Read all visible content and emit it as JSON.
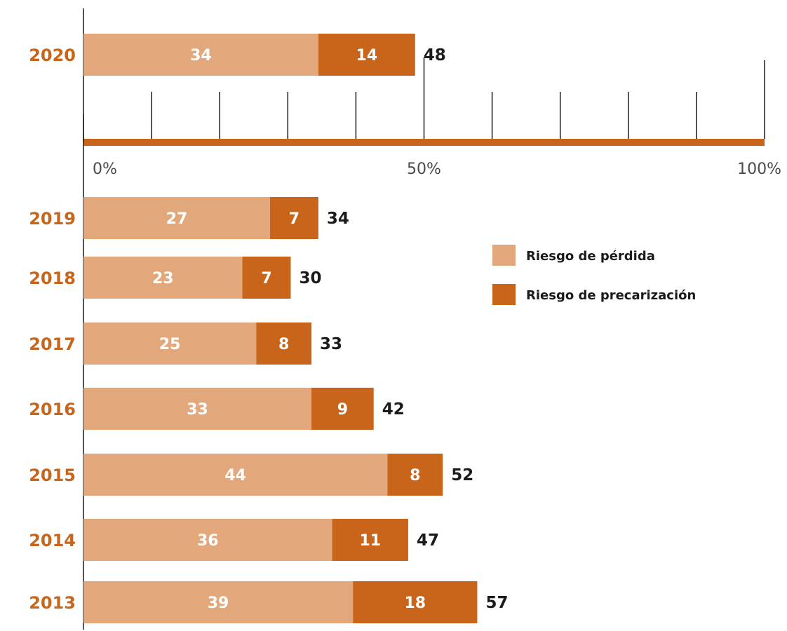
{
  "chart_data": {
    "type": "bar",
    "orientation": "horizontal",
    "stacked": true,
    "categories": [
      "2020",
      "2019",
      "2018",
      "2017",
      "2016",
      "2015",
      "2014",
      "2013"
    ],
    "series": [
      {
        "name": "Riesgo de pérdida",
        "values": [
          34,
          27,
          23,
          25,
          33,
          44,
          36,
          39
        ]
      },
      {
        "name": "Riesgo de precarización",
        "values": [
          14,
          7,
          7,
          8,
          9,
          8,
          11,
          18
        ]
      }
    ],
    "totals": [
      48,
      34,
      30,
      33,
      42,
      52,
      47,
      57
    ],
    "scale": {
      "tick_labels": [
        "0%",
        "50%",
        "100%"
      ],
      "xlim": [
        0,
        100
      ],
      "ticks_every": 10
    },
    "legend_position": "right",
    "colors": {
      "Riesgo de pérdida": "#e2a77a",
      "Riesgo de precarización": "#c8651b",
      "year_label": "#c8651b",
      "axis": "#1b1b1b",
      "scale_line": "#c8651b"
    },
    "title": "",
    "xlabel": "",
    "ylabel": ""
  }
}
